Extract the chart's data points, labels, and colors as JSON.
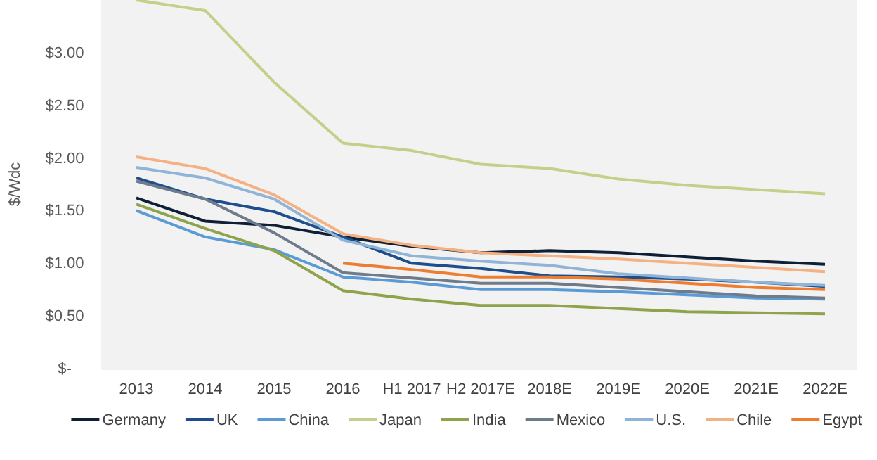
{
  "chart_data": {
    "type": "line",
    "ylabel": "$/Wdc",
    "categories": [
      "2013",
      "2014",
      "2015",
      "2016",
      "H1 2017",
      "H2 2017E",
      "2018E",
      "2019E",
      "2020E",
      "2021E",
      "2022E"
    ],
    "ylim": [
      0,
      3.5
    ],
    "yticks": [
      {
        "value": 0,
        "label": "$-"
      },
      {
        "value": 0.5,
        "label": "$0.50"
      },
      {
        "value": 1,
        "label": "$1.00"
      },
      {
        "value": 1.5,
        "label": "$1.50"
      },
      {
        "value": 2,
        "label": "$2.00"
      },
      {
        "value": 2.5,
        "label": "$2.50"
      },
      {
        "value": 3,
        "label": "$3.00"
      }
    ],
    "grid": false,
    "legend": "bottom",
    "marker": "none",
    "line_style": "solid",
    "series": [
      {
        "name": "Germany",
        "color": "#0e1f36",
        "values": [
          1.62,
          1.4,
          1.36,
          1.25,
          1.16,
          1.1,
          1.12,
          1.1,
          1.06,
          1.02,
          0.99
        ]
      },
      {
        "name": "UK",
        "color": "#1f4e8c",
        "values": [
          1.81,
          1.61,
          1.49,
          1.25,
          1.0,
          0.95,
          0.88,
          0.87,
          0.85,
          0.82,
          0.78
        ]
      },
      {
        "name": "China",
        "color": "#5b9bd5",
        "values": [
          1.5,
          1.25,
          1.13,
          0.87,
          0.82,
          0.75,
          0.75,
          0.73,
          0.7,
          0.67,
          0.66
        ]
      },
      {
        "name": "Japan",
        "color": "#c5cf8a",
        "values": [
          3.5,
          3.4,
          2.72,
          2.14,
          2.07,
          1.94,
          1.9,
          1.8,
          1.74,
          1.7,
          1.66
        ]
      },
      {
        "name": "India",
        "color": "#8fa34d",
        "values": [
          1.56,
          1.33,
          1.12,
          0.74,
          0.66,
          0.6,
          0.6,
          0.57,
          0.54,
          0.53,
          0.52
        ]
      },
      {
        "name": "Mexico",
        "color": "#6d7b8d",
        "values": [
          1.78,
          1.61,
          1.29,
          0.91,
          0.86,
          0.81,
          0.81,
          0.77,
          0.73,
          0.69,
          0.67
        ]
      },
      {
        "name": "U.S.",
        "color": "#8fb4d8",
        "values": [
          1.91,
          1.81,
          1.61,
          1.22,
          1.07,
          1.02,
          0.98,
          0.9,
          0.86,
          0.82,
          0.79
        ]
      },
      {
        "name": "Chile",
        "color": "#f4b183",
        "values": [
          2.01,
          1.9,
          1.65,
          1.28,
          1.17,
          1.1,
          1.07,
          1.04,
          1.0,
          0.96,
          0.92
        ]
      },
      {
        "name": "Egypt",
        "color": "#ed7d31",
        "values": [
          null,
          null,
          null,
          1.0,
          0.94,
          0.87,
          0.87,
          0.85,
          0.81,
          0.77,
          0.75
        ]
      }
    ]
  }
}
